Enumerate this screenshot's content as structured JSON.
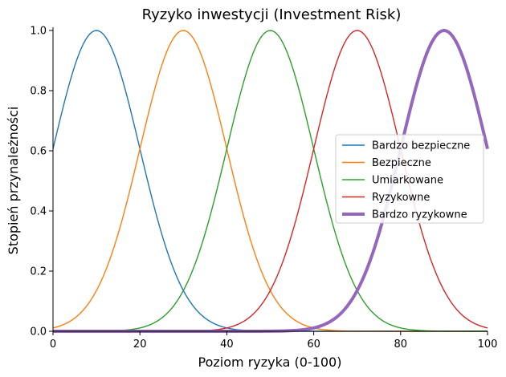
{
  "chart_data": {
    "type": "line",
    "title": "Ryzyko inwestycji (Investment Risk)",
    "xlabel": "Poziom ryzyka (0-100)",
    "ylabel": "Stopień przynależności",
    "xlim": [
      0,
      100
    ],
    "ylim": [
      0,
      1.0
    ],
    "xticks": [
      "0",
      "20",
      "40",
      "60",
      "80",
      "100"
    ],
    "yticks": [
      "0.0",
      "0.2",
      "0.4",
      "0.6",
      "0.8",
      "1.0"
    ],
    "grid": false,
    "legend_position": "center-right",
    "membership_function": "gaussian",
    "series": [
      {
        "name": "Bardzo bezpieczne",
        "mean": 10,
        "sigma": 10,
        "color": "#1f77b4",
        "emphasized": false
      },
      {
        "name": "Bezpieczne",
        "mean": 30,
        "sigma": 10,
        "color": "#ff7f0e",
        "emphasized": false
      },
      {
        "name": "Umiarkowane",
        "mean": 50,
        "sigma": 10,
        "color": "#2ca02c",
        "emphasized": false
      },
      {
        "name": "Ryzykowne",
        "mean": 70,
        "sigma": 10,
        "color": "#d62728",
        "emphasized": false
      },
      {
        "name": "Bardzo ryzykowne",
        "mean": 90,
        "sigma": 10,
        "color": "#9467bd",
        "emphasized": true
      }
    ]
  }
}
